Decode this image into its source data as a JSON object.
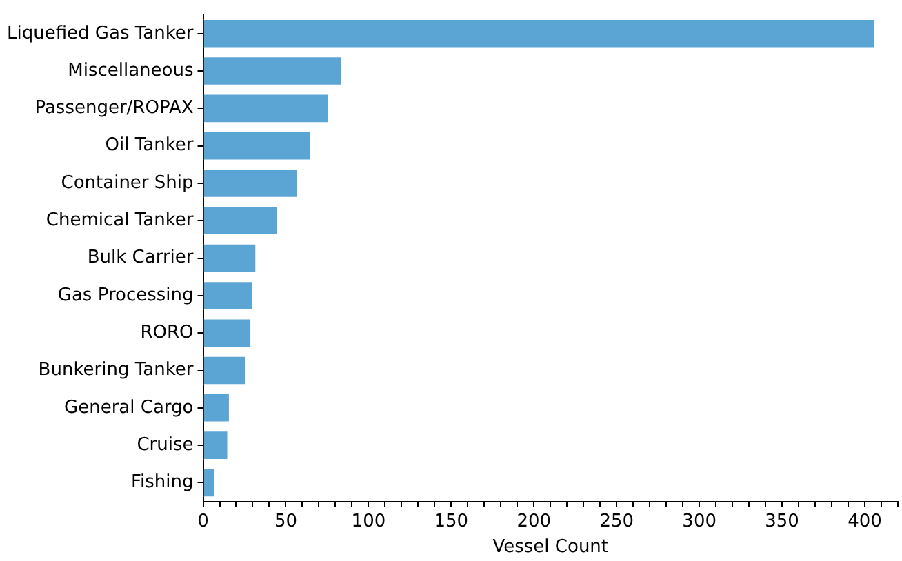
{
  "chart_data": {
    "type": "bar",
    "orientation": "horizontal",
    "xlabel": "Vessel Count",
    "categories": [
      "Liquefied Gas Tanker",
      "Miscellaneous",
      "Passenger/ROPAX",
      "Oil Tanker",
      "Container Ship",
      "Chemical Tanker",
      "Bulk Carrier",
      "Gas Processing",
      "RORO",
      "Bunkering Tanker",
      "General Cargo",
      "Cruise",
      "Fishing"
    ],
    "values": [
      406,
      84,
      76,
      65,
      57,
      45,
      32,
      30,
      29,
      26,
      16,
      15,
      7
    ],
    "color": "#5ba5d5",
    "xlim": [
      0,
      420
    ],
    "xticks": [
      0,
      {
        "value": 10,
        "label": null
      },
      {
        "value": 20,
        "label": null
      },
      {
        "value": 30,
        "label": null
      },
      {
        "value": 40,
        "label": null
      },
      50,
      {
        "value": 60,
        "label": null
      },
      {
        "value": 70,
        "label": null
      },
      {
        "value": 80,
        "label": null
      },
      {
        "value": 90,
        "label": null
      },
      100,
      {
        "value": 110,
        "label": null
      },
      {
        "value": 120,
        "label": null
      },
      {
        "value": 130,
        "label": null
      },
      {
        "value": 140,
        "label": null
      },
      150,
      {
        "value": 160,
        "label": null
      },
      {
        "value": 170,
        "label": null
      },
      {
        "value": 180,
        "label": null
      },
      {
        "value": 190,
        "label": null
      },
      200,
      {
        "value": 210,
        "label": null
      },
      {
        "value": 220,
        "label": null
      },
      {
        "value": 230,
        "label": null
      },
      {
        "value": 240,
        "label": null
      },
      250,
      {
        "value": 260,
        "label": null
      },
      {
        "value": 270,
        "label": null
      },
      {
        "value": 280,
        "label": null
      },
      {
        "value": 290,
        "label": null
      },
      300,
      {
        "value": 310,
        "label": null
      },
      {
        "value": 320,
        "label": null
      },
      {
        "value": 330,
        "label": null
      },
      {
        "value": 340,
        "label": null
      },
      350,
      {
        "value": 360,
        "label": null
      },
      {
        "value": 370,
        "label": null
      },
      {
        "value": 380,
        "label": null
      },
      {
        "value": 390,
        "label": null
      },
      400,
      {
        "value": 410,
        "label": null
      },
      {
        "value": 420,
        "label": null
      }
    ],
    "grid": false,
    "legend": false
  }
}
